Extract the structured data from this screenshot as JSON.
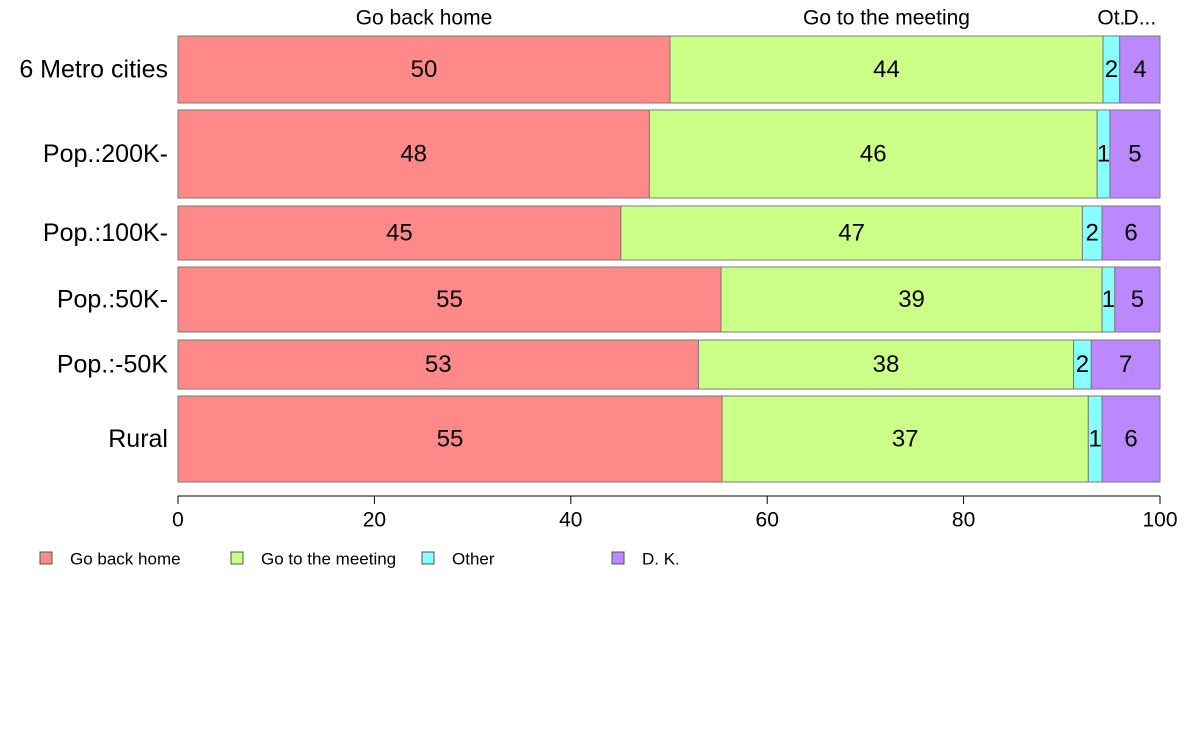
{
  "chart_data": {
    "type": "bar",
    "orientation": "horizontal",
    "stacked": true,
    "categories": [
      "6 Metro cities",
      "Pop.:200K-",
      "Pop.:100K-",
      "Pop.:50K-",
      "Pop.:-50K",
      "Rural"
    ],
    "series": [
      {
        "name": "Go back home",
        "color": "#ff8888",
        "values": [
          50.1,
          48.0,
          45.1,
          55.3,
          53.0,
          55.4
        ],
        "labels": [
          "50",
          "48",
          "45",
          "55",
          "53",
          "55"
        ]
      },
      {
        "name": "Go to the meeting",
        "color": "#ccff88",
        "values": [
          44.1,
          45.6,
          47.0,
          38.8,
          38.2,
          37.3
        ],
        "labels": [
          "44",
          "46",
          "47",
          "39",
          "38",
          "37"
        ]
      },
      {
        "name": "Other",
        "color": "#88ffff",
        "values": [
          1.7,
          1.3,
          2.0,
          1.3,
          1.8,
          1.4
        ],
        "labels": [
          "2",
          "1",
          "2",
          "1",
          "2",
          "1"
        ]
      },
      {
        "name": "D. K.",
        "color": "#bb88ff",
        "values": [
          4.1,
          5.1,
          5.9,
          4.6,
          7.0,
          5.9
        ],
        "labels": [
          "4",
          "5",
          "6",
          "5",
          "7",
          "6"
        ]
      }
    ],
    "top_labels": [
      "Go back home",
      "Go to the meeting",
      "Ot.",
      "D..."
    ],
    "xlim": [
      0,
      100
    ],
    "xticks": [
      "0",
      "20",
      "40",
      "60",
      "80",
      "100"
    ],
    "legend_entries": [
      "Go back home",
      "Go to the meeting",
      "Other",
      "D. K."
    ],
    "legend_position": "bottom-left",
    "grid": false
  }
}
